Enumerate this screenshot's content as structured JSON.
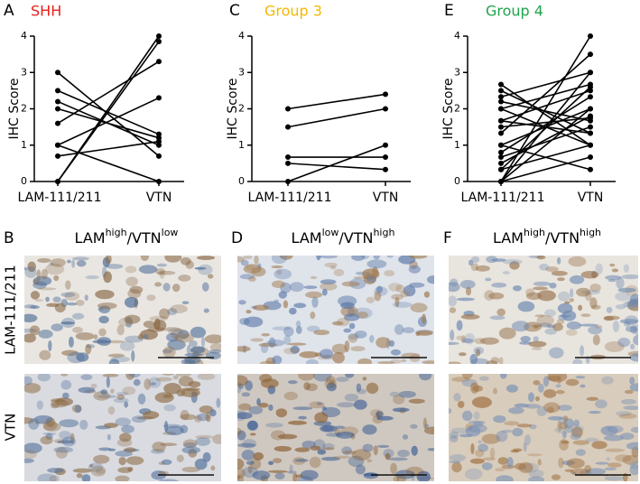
{
  "chart_data": [
    {
      "type": "paired",
      "panel_label": "A",
      "title": "SHH",
      "title_color": "#e8201c",
      "ylabel": "IHC Score",
      "categories": [
        "LAM-111/211",
        "VTN"
      ],
      "ylim": [
        0,
        4
      ],
      "yticks": [
        0,
        1,
        2,
        3,
        4
      ],
      "color": "#000000",
      "pairs": [
        [
          3.0,
          0.7
        ],
        [
          2.5,
          1.3
        ],
        [
          2.2,
          1.0
        ],
        [
          2.0,
          1.2
        ],
        [
          1.6,
          3.3
        ],
        [
          1.0,
          2.3
        ],
        [
          1.0,
          0.0
        ],
        [
          0.7,
          1.1
        ],
        [
          0.0,
          4.0
        ],
        [
          0.0,
          3.85
        ]
      ]
    },
    {
      "type": "paired",
      "panel_label": "C",
      "title": "Group 3",
      "title_color": "#f5b800",
      "ylabel": "IHC Score",
      "categories": [
        "LAM-111/211",
        "VTN"
      ],
      "ylim": [
        0,
        4
      ],
      "yticks": [
        0,
        1,
        2,
        3,
        4
      ],
      "color": "#000000",
      "pairs": [
        [
          2.0,
          2.4
        ],
        [
          1.5,
          2.0
        ],
        [
          0.67,
          0.67
        ],
        [
          0.5,
          0.33
        ],
        [
          0.0,
          1.0
        ]
      ]
    },
    {
      "type": "paired",
      "panel_label": "E",
      "title": "Group 4",
      "title_color": "#1ea54a",
      "ylabel": "IHC Score",
      "categories": [
        "LAM-111/211",
        "VTN"
      ],
      "ylim": [
        0,
        4
      ],
      "yticks": [
        0,
        1,
        2,
        3,
        4
      ],
      "color": "#000000",
      "pairs": [
        [
          2.67,
          1.0
        ],
        [
          2.5,
          1.33
        ],
        [
          2.33,
          3.0
        ],
        [
          2.2,
          1.67
        ],
        [
          2.0,
          2.67
        ],
        [
          2.0,
          1.0
        ],
        [
          1.67,
          1.33
        ],
        [
          1.67,
          2.5
        ],
        [
          1.5,
          1.75
        ],
        [
          1.33,
          3.5
        ],
        [
          1.0,
          2.0
        ],
        [
          1.0,
          0.33
        ],
        [
          0.8,
          2.33
        ],
        [
          0.67,
          1.5
        ],
        [
          0.5,
          1.8
        ],
        [
          0.33,
          2.6
        ],
        [
          0.33,
          1.0
        ],
        [
          0.0,
          4.0
        ],
        [
          0.0,
          2.0
        ],
        [
          0.0,
          0.67
        ],
        [
          0.0,
          3.0
        ]
      ]
    }
  ],
  "micrographs": {
    "row_labels": [
      "LAM-111/211",
      "VTN"
    ],
    "panels": [
      {
        "label": "B",
        "title_parts": [
          "LAM",
          "high",
          "/VTN",
          "low"
        ]
      },
      {
        "label": "D",
        "title_parts": [
          "LAM",
          "low",
          "/VTN",
          "high"
        ]
      },
      {
        "label": "F",
        "title_parts": [
          "LAM",
          "high",
          "/VTN",
          "high"
        ]
      }
    ]
  }
}
